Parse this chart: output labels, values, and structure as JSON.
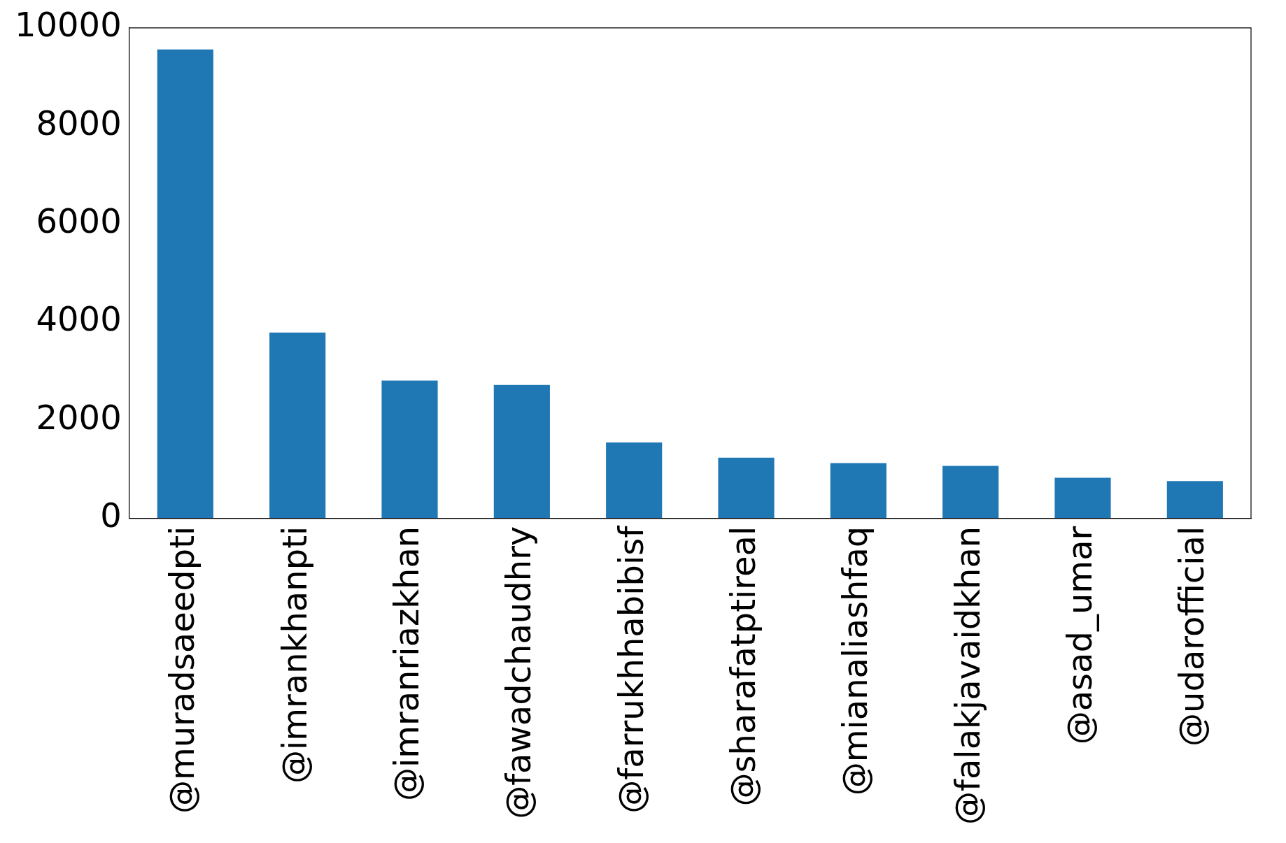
{
  "chart_data": {
    "type": "bar",
    "categories": [
      "@muradsaeedpti",
      "@imrankhanpti",
      "@imranriazkhan",
      "@fawadchaudhry",
      "@farrukhhabibisf",
      "@sharafatptireal",
      "@mianaliashfaq",
      "@falakjavaidkhan",
      "@asad_umar",
      "@udarofficial"
    ],
    "values": [
      9560,
      3790,
      2810,
      2720,
      1550,
      1240,
      1130,
      1070,
      830,
      760
    ],
    "color": "#1f77b4",
    "ylim": [
      0,
      10000
    ],
    "yticks": [
      0,
      2000,
      4000,
      6000,
      8000,
      10000
    ],
    "grid": false,
    "legend": false
  }
}
